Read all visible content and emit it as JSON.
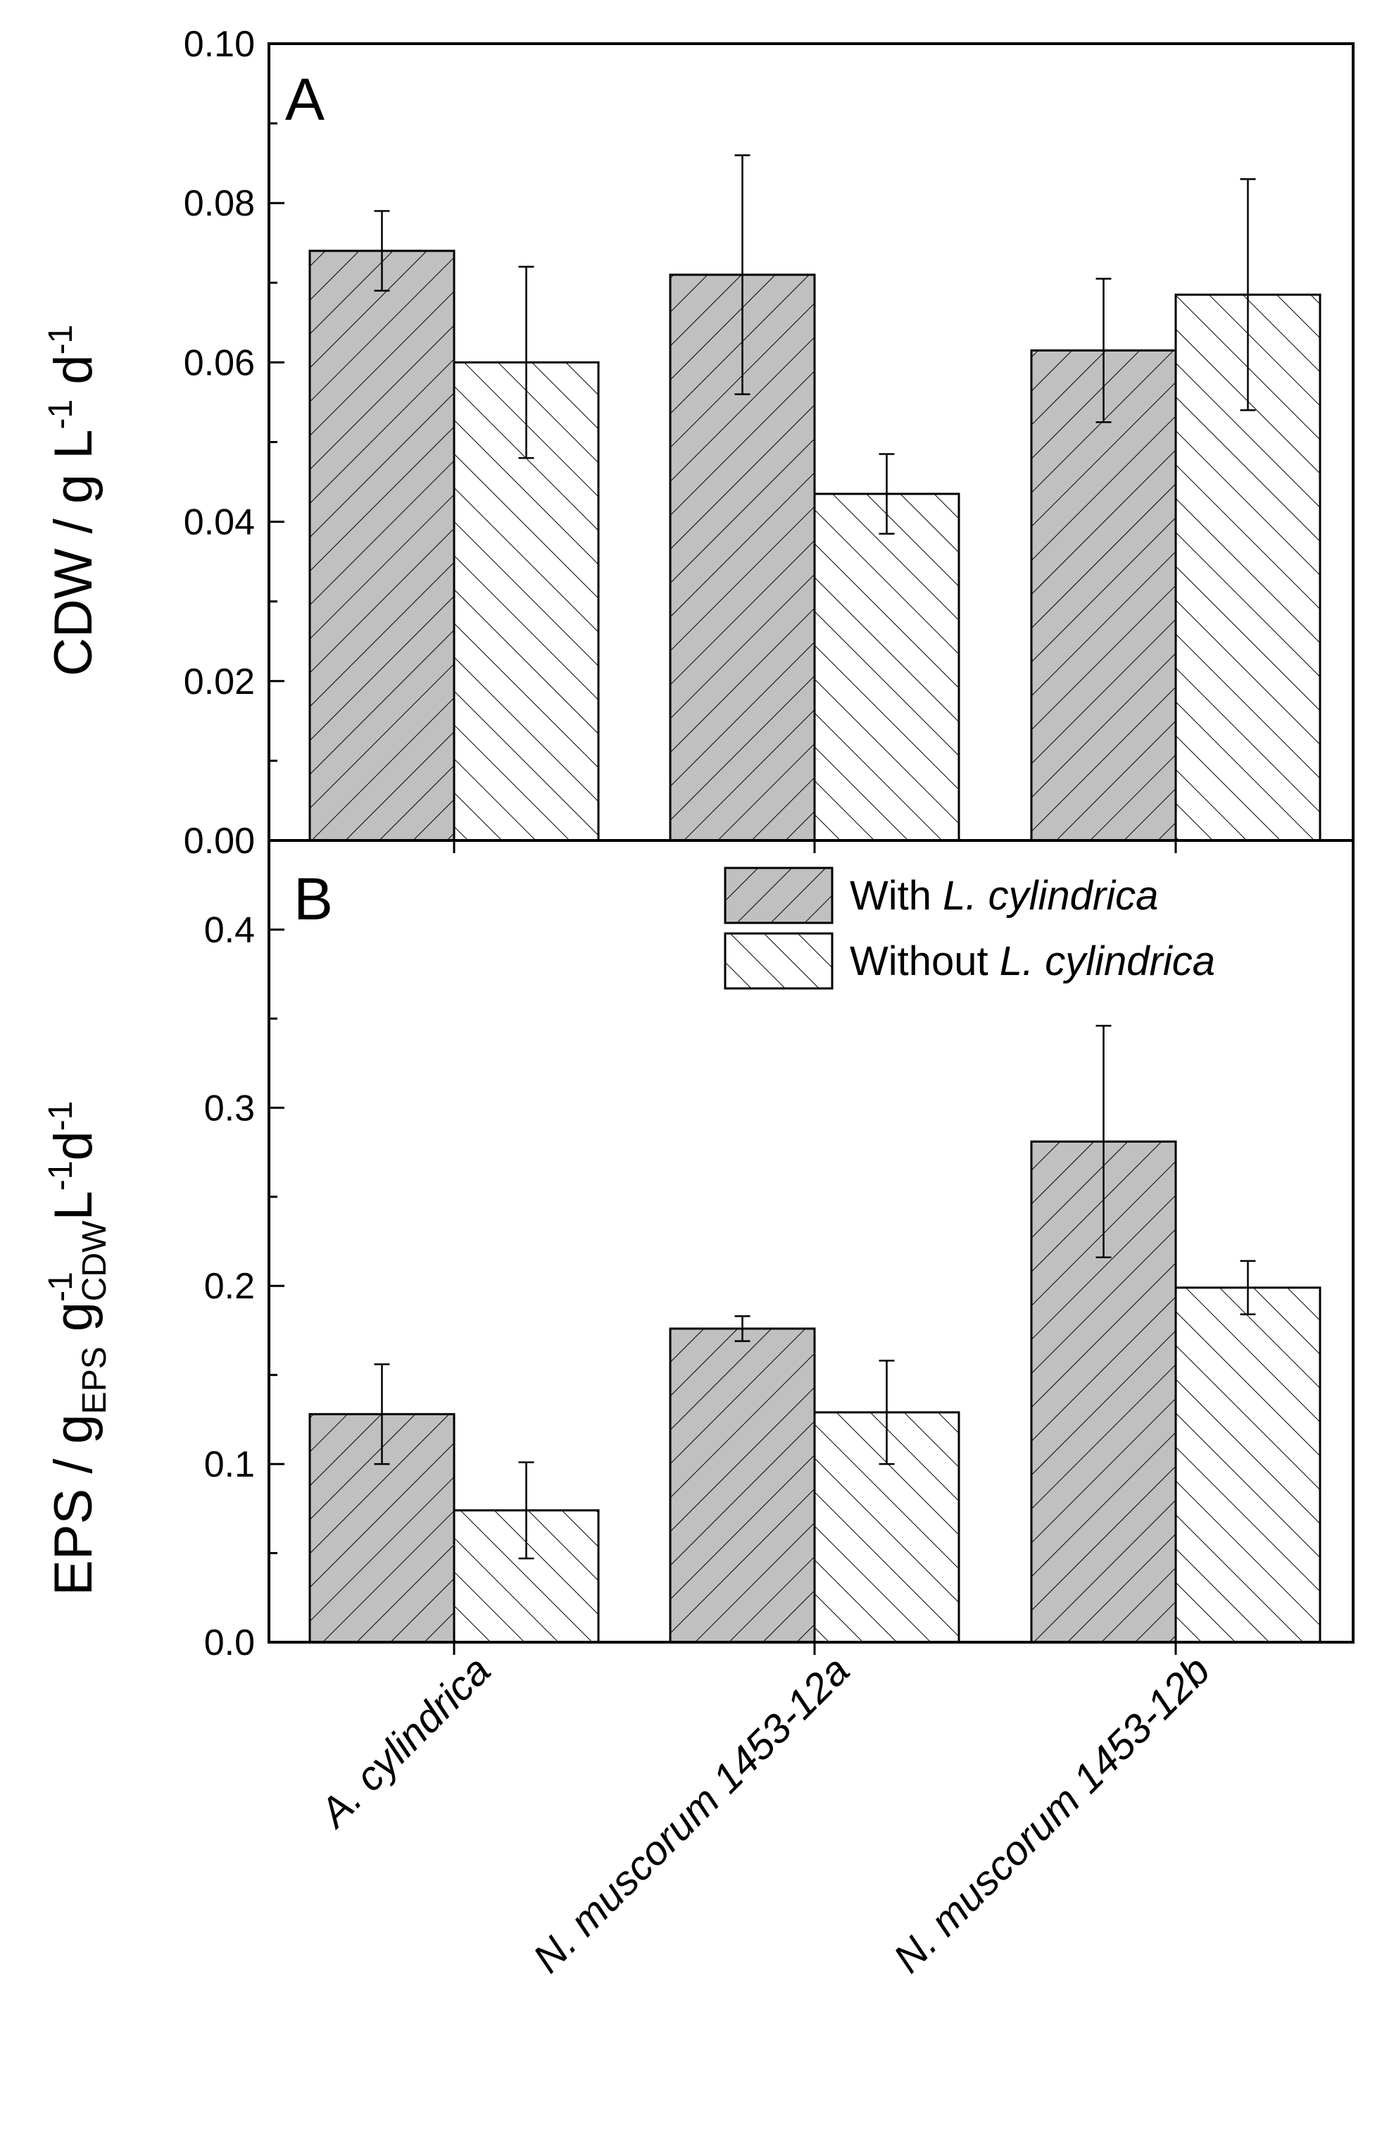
{
  "chart_data": [
    {
      "panel": "A",
      "type": "bar",
      "ylabel": {
        "main": "CDW / g L",
        "exp1": "-1",
        "mid": " d",
        "exp2": "-1"
      },
      "ylim": [
        0,
        0.1
      ],
      "yticks": [
        "0.00",
        "0.02",
        "0.04",
        "0.06",
        "0.08",
        "0.10"
      ],
      "categories": [
        "A. cylindrica",
        "N. muscorum 1453-12a",
        "N. muscorum 1453-12b"
      ],
      "series": [
        {
          "name": "With L. cylindrica",
          "values": [
            0.074,
            0.071,
            0.0615
          ],
          "errors": [
            0.005,
            0.015,
            0.009
          ],
          "fill": "#c0c0c0"
        },
        {
          "name": "Without L. cylindrica",
          "values": [
            0.06,
            0.0435,
            0.0685
          ],
          "errors": [
            0.012,
            0.005,
            0.0145
          ],
          "fill": "#ffffff"
        }
      ]
    },
    {
      "panel": "B",
      "type": "bar",
      "ylabel": {
        "main": "EPS / g",
        "sub1": "EPS",
        "mid1": " g",
        "sup2": "-1",
        "sub2": "CDW",
        "mid2": "L",
        "sup3": "-1",
        "mid3": "d",
        "sup4": "-1"
      },
      "ylim": [
        0,
        0.45
      ],
      "yticks": [
        "0.0",
        "0.1",
        "0.2",
        "0.3",
        "0.4"
      ],
      "categories": [
        "A. cylindrica",
        "N. muscorum 1453-12a",
        "N. muscorum 1453-12b"
      ],
      "series": [
        {
          "name": "With L. cylindrica",
          "values": [
            0.128,
            0.176,
            0.281
          ],
          "errors": [
            0.028,
            0.007,
            0.065
          ],
          "fill": "#c0c0c0"
        },
        {
          "name": "Without L. cylindrica",
          "values": [
            0.074,
            0.129,
            0.199
          ],
          "errors": [
            0.027,
            0.029,
            0.015
          ],
          "fill": "#ffffff"
        }
      ]
    }
  ],
  "legend": [
    {
      "prefix": "With ",
      "italic": "L. cylindrica"
    },
    {
      "prefix": "Without ",
      "italic": "L. cylindrica"
    }
  ],
  "colors": {
    "with_fill": "#c0c0c0",
    "without_fill": "#ffffff",
    "stroke": "#000000"
  }
}
